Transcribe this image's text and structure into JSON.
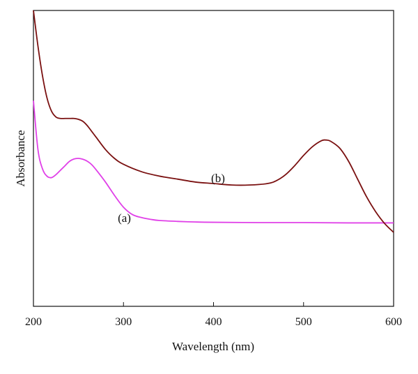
{
  "chart_data": {
    "type": "line",
    "title": "",
    "xlabel": "Wavelength (nm)",
    "ylabel": "Absorbance",
    "xlim": [
      200,
      600
    ],
    "ylim": [
      0,
      1
    ],
    "xticks": [
      200,
      300,
      400,
      500,
      600
    ],
    "yticks_shown": false,
    "grid": false,
    "legend": "none",
    "series": [
      {
        "name": "(a)",
        "color": "#e040e8",
        "x": [
          200,
          205,
          210,
          215,
          220,
          225,
          230,
          235,
          240,
          245,
          250,
          255,
          260,
          265,
          270,
          280,
          290,
          300,
          310,
          320,
          330,
          340,
          360,
          380,
          400,
          450,
          500,
          550,
          600
        ],
        "y": [
          0.695,
          0.53,
          0.465,
          0.44,
          0.435,
          0.445,
          0.46,
          0.475,
          0.49,
          0.498,
          0.5,
          0.497,
          0.49,
          0.478,
          0.46,
          0.42,
          0.375,
          0.335,
          0.31,
          0.3,
          0.294,
          0.29,
          0.287,
          0.285,
          0.284,
          0.283,
          0.283,
          0.282,
          0.282
        ]
      },
      {
        "name": "(b)",
        "color": "#7a1010",
        "x": [
          200,
          205,
          210,
          215,
          220,
          225,
          230,
          235,
          240,
          245,
          250,
          255,
          260,
          265,
          270,
          280,
          290,
          300,
          320,
          340,
          360,
          380,
          400,
          420,
          440,
          460,
          470,
          480,
          490,
          500,
          510,
          520,
          525,
          530,
          540,
          550,
          560,
          570,
          580,
          590,
          600
        ],
        "y": [
          1.0,
          0.88,
          0.78,
          0.705,
          0.66,
          0.64,
          0.635,
          0.635,
          0.635,
          0.635,
          0.632,
          0.625,
          0.61,
          0.59,
          0.57,
          0.53,
          0.5,
          0.48,
          0.455,
          0.44,
          0.43,
          0.42,
          0.415,
          0.41,
          0.41,
          0.415,
          0.425,
          0.445,
          0.475,
          0.51,
          0.54,
          0.56,
          0.562,
          0.558,
          0.535,
          0.49,
          0.43,
          0.37,
          0.32,
          0.28,
          0.25
        ]
      }
    ],
    "annotations": [
      {
        "text": "(a)",
        "x": 301,
        "y": 0.285,
        "ref_series": 0
      },
      {
        "text": "(b)",
        "x": 405,
        "y": 0.42,
        "ref_series": 1
      }
    ]
  }
}
